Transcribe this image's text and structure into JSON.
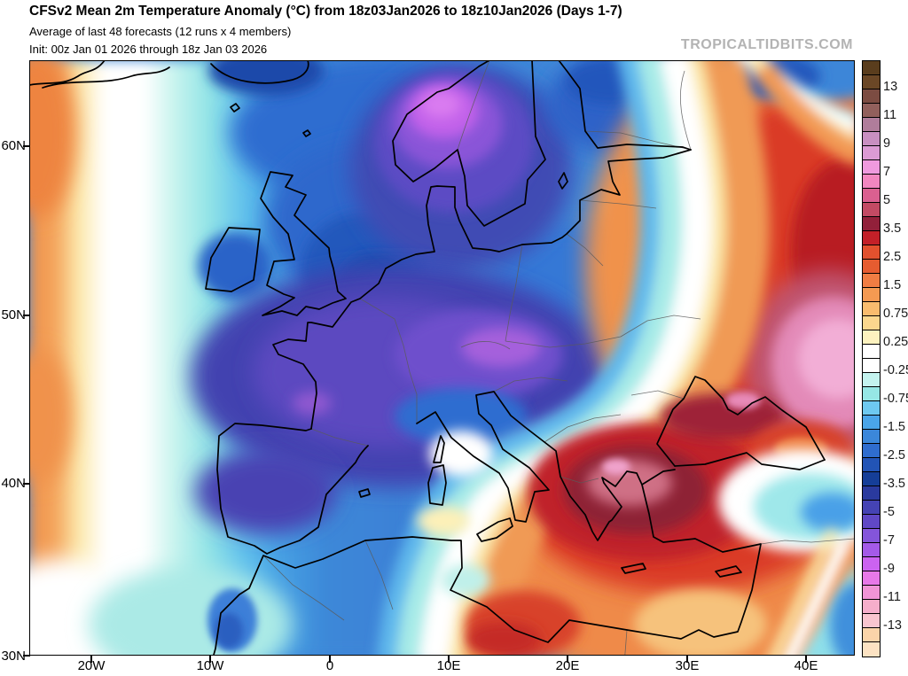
{
  "header": {
    "title": "CFSv2 Mean 2m Temperature Anomaly (°C) from 18z03Jan2026 to 18z10Jan2026 (Days 1-7)",
    "subtitle": "Average of last 48 forecasts (12 runs x 4 members)",
    "init_line": "Init: 00z Jan 01 2026 through 18z Jan 03 2026",
    "watermark": "TROPICALTIDBITS.COM"
  },
  "axes": {
    "y_labels": [
      "60N",
      "50N",
      "40N",
      "30N"
    ],
    "x_labels": [
      "20W",
      "10W",
      "0",
      "10E",
      "20E",
      "30E",
      "40E"
    ]
  },
  "colorbar": {
    "tick_labels": [
      "13",
      "11",
      "9",
      "7",
      "5",
      "3.5",
      "2.5",
      "1.5",
      "0.75",
      "0.25",
      "-0.25",
      "-0.75",
      "-1.5",
      "-2.5",
      "-3.5",
      "-5",
      "-7",
      "-9",
      "-11",
      "-13"
    ],
    "cells": [
      "#5a3d1d",
      "#6b4726",
      "#7c4c42",
      "#92605c",
      "#b07d9b",
      "#c98fc1",
      "#dc9bd4",
      "#ef9ade",
      "#f287c0",
      "#da6090",
      "#c34a64",
      "#92203a",
      "#c32028",
      "#e2512e",
      "#e65c30",
      "#f07d43",
      "#f49a52",
      "#f9bc6e",
      "#fbd78e",
      "#fdf2bf",
      "#ffffff",
      "#ffffff",
      "#c4f3ef",
      "#96e7e5",
      "#6ec9f0",
      "#4aa5e9",
      "#3b87da",
      "#2f6dcf",
      "#2254b6",
      "#153e98",
      "#2a3a9e",
      "#4543b4",
      "#6048c6",
      "#8455da",
      "#a45ae8",
      "#cb63f0",
      "#e878e8",
      "#f194d6",
      "#f5aecb",
      "#f9c5cf",
      "#fbd4a9",
      "#fde3c3"
    ]
  }
}
